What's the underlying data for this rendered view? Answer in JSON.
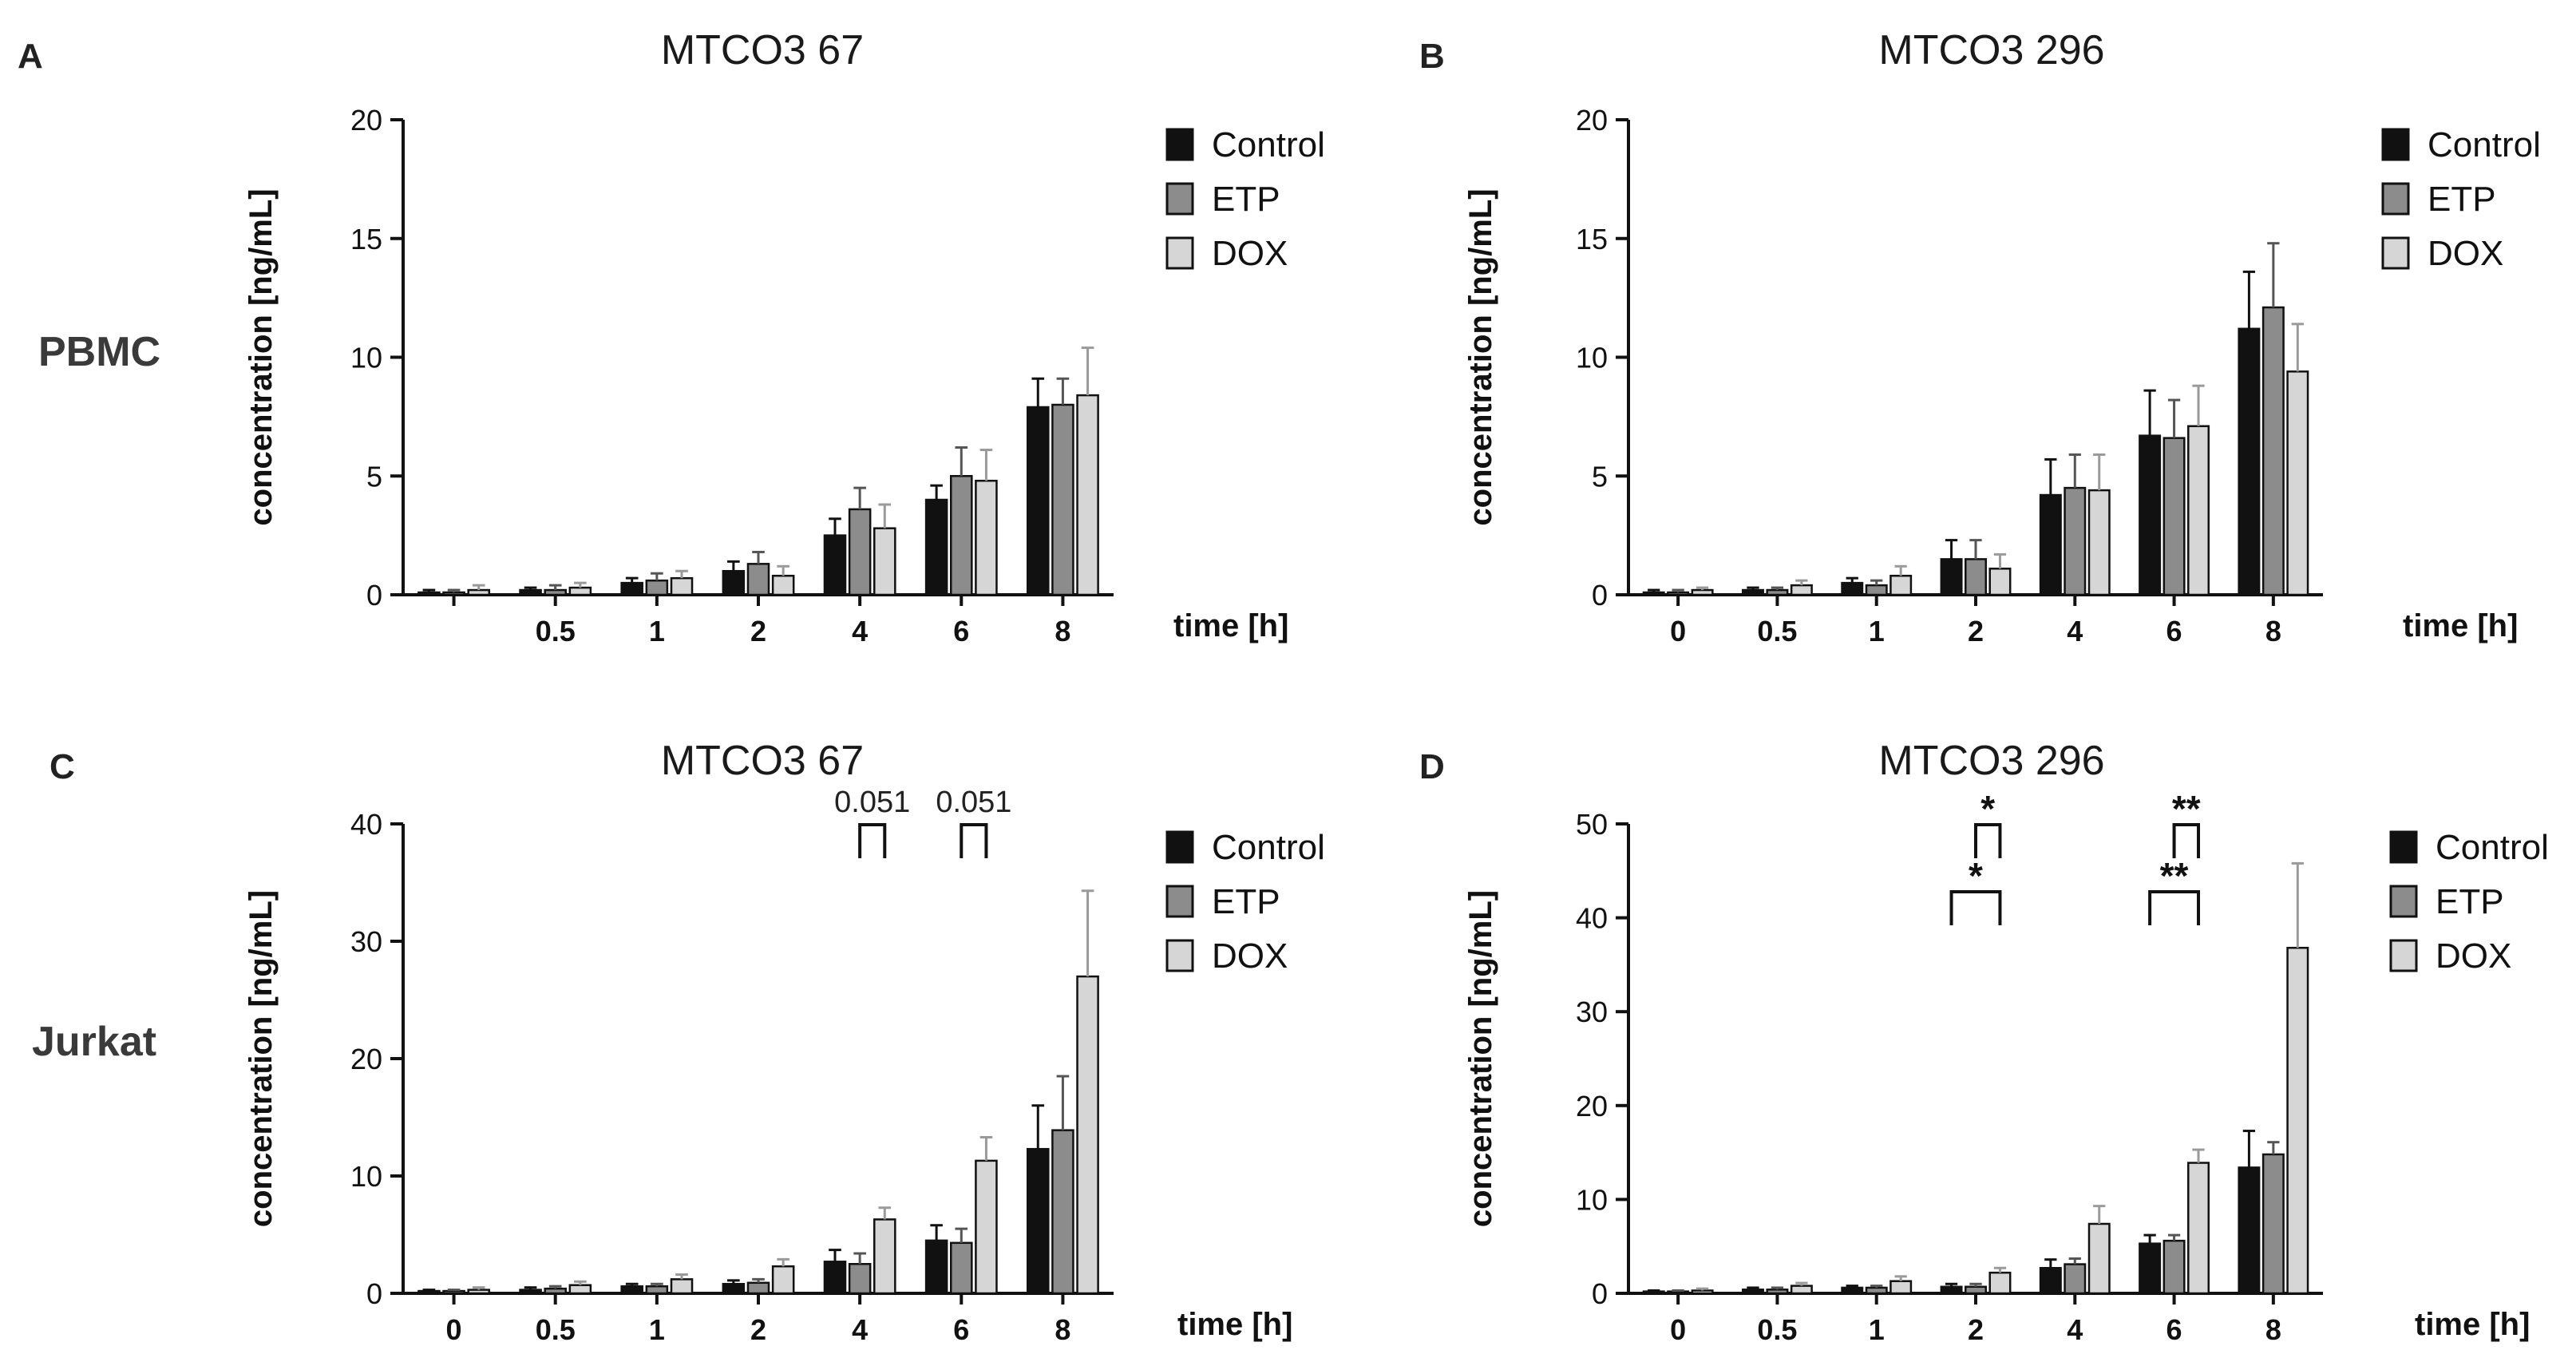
{
  "panels": [
    {
      "letter": "A"
    },
    {
      "letter": "B"
    },
    {
      "letter": "C"
    },
    {
      "letter": "D"
    }
  ],
  "rows": [
    {
      "label": "PBMC"
    },
    {
      "label": "Jurkat"
    }
  ],
  "colors": {
    "Control": "#111111",
    "ETP": "#8c8c8c",
    "DOX": "#d6d6d6",
    "outline": "#111111",
    "axis": "#111111"
  },
  "chart_data": [
    {
      "type": "bar",
      "title": "MTCO3 67",
      "xlabel": "time [h]",
      "ylabel": "concentration [ng/mL]",
      "ylim": [
        0,
        20
      ],
      "yticks": [
        0,
        5,
        10,
        15,
        20
      ],
      "categories": [
        "",
        "0.5",
        "1",
        "2",
        "4",
        "6",
        "8"
      ],
      "series": [
        {
          "name": "Control",
          "values": [
            0.1,
            0.2,
            0.5,
            1.0,
            2.5,
            4.0,
            7.9
          ],
          "errors": [
            0.1,
            0.1,
            0.2,
            0.4,
            0.7,
            0.6,
            1.2
          ]
        },
        {
          "name": "ETP",
          "values": [
            0.1,
            0.2,
            0.6,
            1.3,
            3.6,
            5.0,
            8.0
          ],
          "errors": [
            0.1,
            0.2,
            0.3,
            0.5,
            0.9,
            1.2,
            1.1
          ]
        },
        {
          "name": "DOX",
          "values": [
            0.2,
            0.3,
            0.7,
            0.8,
            2.8,
            4.8,
            8.4
          ],
          "errors": [
            0.2,
            0.2,
            0.3,
            0.4,
            1.0,
            1.3,
            2.0
          ]
        }
      ],
      "legend": [
        "Control",
        "ETP",
        "DOX"
      ],
      "legend_position": "top-right",
      "annotations": []
    },
    {
      "type": "bar",
      "title": "MTCO3 296",
      "xlabel": "time [h]",
      "ylabel": "concentration [ng/mL]",
      "ylim": [
        0,
        20
      ],
      "yticks": [
        0,
        5,
        10,
        15,
        20
      ],
      "categories": [
        "0",
        "0.5",
        "1",
        "2",
        "4",
        "6",
        "8"
      ],
      "series": [
        {
          "name": "Control",
          "values": [
            0.1,
            0.2,
            0.5,
            1.5,
            4.2,
            6.7,
            11.2
          ],
          "errors": [
            0.1,
            0.1,
            0.2,
            0.8,
            1.5,
            1.9,
            2.4
          ]
        },
        {
          "name": "ETP",
          "values": [
            0.1,
            0.2,
            0.4,
            1.5,
            4.5,
            6.6,
            12.1
          ],
          "errors": [
            0.1,
            0.1,
            0.2,
            0.8,
            1.4,
            1.6,
            2.7
          ]
        },
        {
          "name": "DOX",
          "values": [
            0.2,
            0.4,
            0.8,
            1.1,
            4.4,
            7.1,
            9.4
          ],
          "errors": [
            0.1,
            0.2,
            0.4,
            0.6,
            1.5,
            1.7,
            2.0
          ]
        }
      ],
      "legend": [
        "Control",
        "ETP",
        "DOX"
      ],
      "legend_position": "top-right",
      "annotations": []
    },
    {
      "type": "bar",
      "title": "MTCO3 67",
      "xlabel": "time [h]",
      "ylabel": "concentration [ng/mL]",
      "ylim": [
        0,
        40
      ],
      "yticks": [
        0,
        10,
        20,
        30,
        40
      ],
      "categories": [
        "0",
        "0.5",
        "1",
        "2",
        "4",
        "6",
        "8"
      ],
      "series": [
        {
          "name": "Control",
          "values": [
            0.2,
            0.3,
            0.6,
            0.8,
            2.7,
            4.5,
            12.3
          ],
          "errors": [
            0.1,
            0.2,
            0.2,
            0.3,
            1.0,
            1.3,
            3.7
          ]
        },
        {
          "name": "ETP",
          "values": [
            0.2,
            0.4,
            0.6,
            0.9,
            2.5,
            4.3,
            13.9
          ],
          "errors": [
            0.1,
            0.2,
            0.2,
            0.3,
            0.9,
            1.2,
            4.6
          ]
        },
        {
          "name": "DOX",
          "values": [
            0.3,
            0.7,
            1.2,
            2.3,
            6.3,
            11.3,
            27.0
          ],
          "errors": [
            0.2,
            0.3,
            0.4,
            0.6,
            1.0,
            2.0,
            7.3
          ]
        }
      ],
      "legend": [
        "Control",
        "ETP",
        "DOX"
      ],
      "legend_position": "top-right",
      "annotations": [
        {
          "label": "0.051",
          "category": "4",
          "from_series": "ETP",
          "to_series": "DOX",
          "level": 1
        },
        {
          "label": "0.051",
          "category": "6",
          "from_series": "ETP",
          "to_series": "DOX",
          "level": 1
        }
      ]
    },
    {
      "type": "bar",
      "title": "MTCO3 296",
      "xlabel": "time [h]",
      "ylabel": "concentration [ng/mL]",
      "ylim": [
        0,
        50
      ],
      "yticks": [
        0,
        10,
        20,
        30,
        40,
        50
      ],
      "categories": [
        "0",
        "0.5",
        "1",
        "2",
        "4",
        "6",
        "8"
      ],
      "series": [
        {
          "name": "Control",
          "values": [
            0.2,
            0.4,
            0.6,
            0.7,
            2.7,
            5.3,
            13.4
          ],
          "errors": [
            0.1,
            0.2,
            0.2,
            0.3,
            0.9,
            0.9,
            3.9
          ]
        },
        {
          "name": "ETP",
          "values": [
            0.2,
            0.4,
            0.6,
            0.7,
            3.1,
            5.6,
            14.8
          ],
          "errors": [
            0.1,
            0.2,
            0.2,
            0.3,
            0.6,
            0.6,
            1.3
          ]
        },
        {
          "name": "DOX",
          "values": [
            0.3,
            0.8,
            1.3,
            2.2,
            7.4,
            13.9,
            36.8
          ],
          "errors": [
            0.2,
            0.3,
            0.5,
            0.5,
            1.9,
            1.4,
            9.0
          ]
        }
      ],
      "legend": [
        "Control",
        "ETP",
        "DOX"
      ],
      "legend_position": "top-right",
      "annotations": [
        {
          "label": "*",
          "category": "2",
          "from_series": "ETP",
          "to_series": "DOX",
          "level": 2
        },
        {
          "label": "*",
          "category": "2",
          "from_series": "Control",
          "to_series": "DOX",
          "level": 1
        },
        {
          "label": "**",
          "category": "6",
          "from_series": "ETP",
          "to_series": "DOX",
          "level": 2
        },
        {
          "label": "**",
          "category": "6",
          "from_series": "Control",
          "to_series": "DOX",
          "level": 1
        }
      ]
    }
  ]
}
